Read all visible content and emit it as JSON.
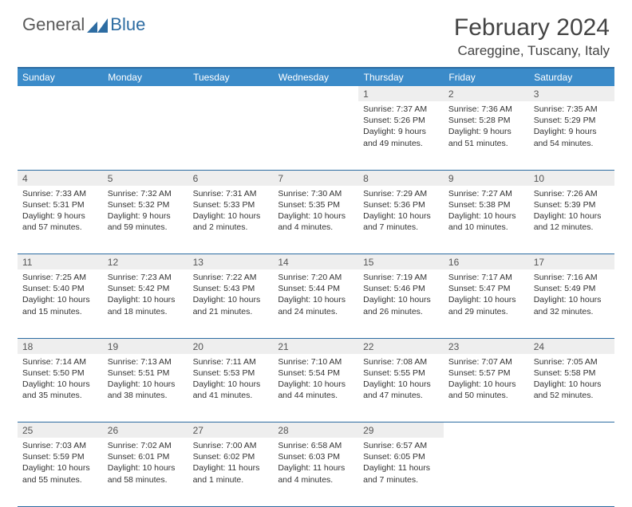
{
  "logo": {
    "general": "General",
    "blue": "Blue"
  },
  "title": "February 2024",
  "location": "Careggine, Tuscany, Italy",
  "colors": {
    "header_bg": "#3b8bc9",
    "border": "#2d6ca2",
    "daynum_bg": "#eeeeee",
    "text": "#333333"
  },
  "weekdays": [
    "Sunday",
    "Monday",
    "Tuesday",
    "Wednesday",
    "Thursday",
    "Friday",
    "Saturday"
  ],
  "weeks": [
    [
      null,
      null,
      null,
      null,
      {
        "n": "1",
        "sr": "7:37 AM",
        "ss": "5:26 PM",
        "dl": "9 hours and 49 minutes."
      },
      {
        "n": "2",
        "sr": "7:36 AM",
        "ss": "5:28 PM",
        "dl": "9 hours and 51 minutes."
      },
      {
        "n": "3",
        "sr": "7:35 AM",
        "ss": "5:29 PM",
        "dl": "9 hours and 54 minutes."
      }
    ],
    [
      {
        "n": "4",
        "sr": "7:33 AM",
        "ss": "5:31 PM",
        "dl": "9 hours and 57 minutes."
      },
      {
        "n": "5",
        "sr": "7:32 AM",
        "ss": "5:32 PM",
        "dl": "9 hours and 59 minutes."
      },
      {
        "n": "6",
        "sr": "7:31 AM",
        "ss": "5:33 PM",
        "dl": "10 hours and 2 minutes."
      },
      {
        "n": "7",
        "sr": "7:30 AM",
        "ss": "5:35 PM",
        "dl": "10 hours and 4 minutes."
      },
      {
        "n": "8",
        "sr": "7:29 AM",
        "ss": "5:36 PM",
        "dl": "10 hours and 7 minutes."
      },
      {
        "n": "9",
        "sr": "7:27 AM",
        "ss": "5:38 PM",
        "dl": "10 hours and 10 minutes."
      },
      {
        "n": "10",
        "sr": "7:26 AM",
        "ss": "5:39 PM",
        "dl": "10 hours and 12 minutes."
      }
    ],
    [
      {
        "n": "11",
        "sr": "7:25 AM",
        "ss": "5:40 PM",
        "dl": "10 hours and 15 minutes."
      },
      {
        "n": "12",
        "sr": "7:23 AM",
        "ss": "5:42 PM",
        "dl": "10 hours and 18 minutes."
      },
      {
        "n": "13",
        "sr": "7:22 AM",
        "ss": "5:43 PM",
        "dl": "10 hours and 21 minutes."
      },
      {
        "n": "14",
        "sr": "7:20 AM",
        "ss": "5:44 PM",
        "dl": "10 hours and 24 minutes."
      },
      {
        "n": "15",
        "sr": "7:19 AM",
        "ss": "5:46 PM",
        "dl": "10 hours and 26 minutes."
      },
      {
        "n": "16",
        "sr": "7:17 AM",
        "ss": "5:47 PM",
        "dl": "10 hours and 29 minutes."
      },
      {
        "n": "17",
        "sr": "7:16 AM",
        "ss": "5:49 PM",
        "dl": "10 hours and 32 minutes."
      }
    ],
    [
      {
        "n": "18",
        "sr": "7:14 AM",
        "ss": "5:50 PM",
        "dl": "10 hours and 35 minutes."
      },
      {
        "n": "19",
        "sr": "7:13 AM",
        "ss": "5:51 PM",
        "dl": "10 hours and 38 minutes."
      },
      {
        "n": "20",
        "sr": "7:11 AM",
        "ss": "5:53 PM",
        "dl": "10 hours and 41 minutes."
      },
      {
        "n": "21",
        "sr": "7:10 AM",
        "ss": "5:54 PM",
        "dl": "10 hours and 44 minutes."
      },
      {
        "n": "22",
        "sr": "7:08 AM",
        "ss": "5:55 PM",
        "dl": "10 hours and 47 minutes."
      },
      {
        "n": "23",
        "sr": "7:07 AM",
        "ss": "5:57 PM",
        "dl": "10 hours and 50 minutes."
      },
      {
        "n": "24",
        "sr": "7:05 AM",
        "ss": "5:58 PM",
        "dl": "10 hours and 52 minutes."
      }
    ],
    [
      {
        "n": "25",
        "sr": "7:03 AM",
        "ss": "5:59 PM",
        "dl": "10 hours and 55 minutes."
      },
      {
        "n": "26",
        "sr": "7:02 AM",
        "ss": "6:01 PM",
        "dl": "10 hours and 58 minutes."
      },
      {
        "n": "27",
        "sr": "7:00 AM",
        "ss": "6:02 PM",
        "dl": "11 hours and 1 minute."
      },
      {
        "n": "28",
        "sr": "6:58 AM",
        "ss": "6:03 PM",
        "dl": "11 hours and 4 minutes."
      },
      {
        "n": "29",
        "sr": "6:57 AM",
        "ss": "6:05 PM",
        "dl": "11 hours and 7 minutes."
      },
      null,
      null
    ]
  ],
  "labels": {
    "sunrise": "Sunrise:",
    "sunset": "Sunset:",
    "daylight": "Daylight:"
  }
}
